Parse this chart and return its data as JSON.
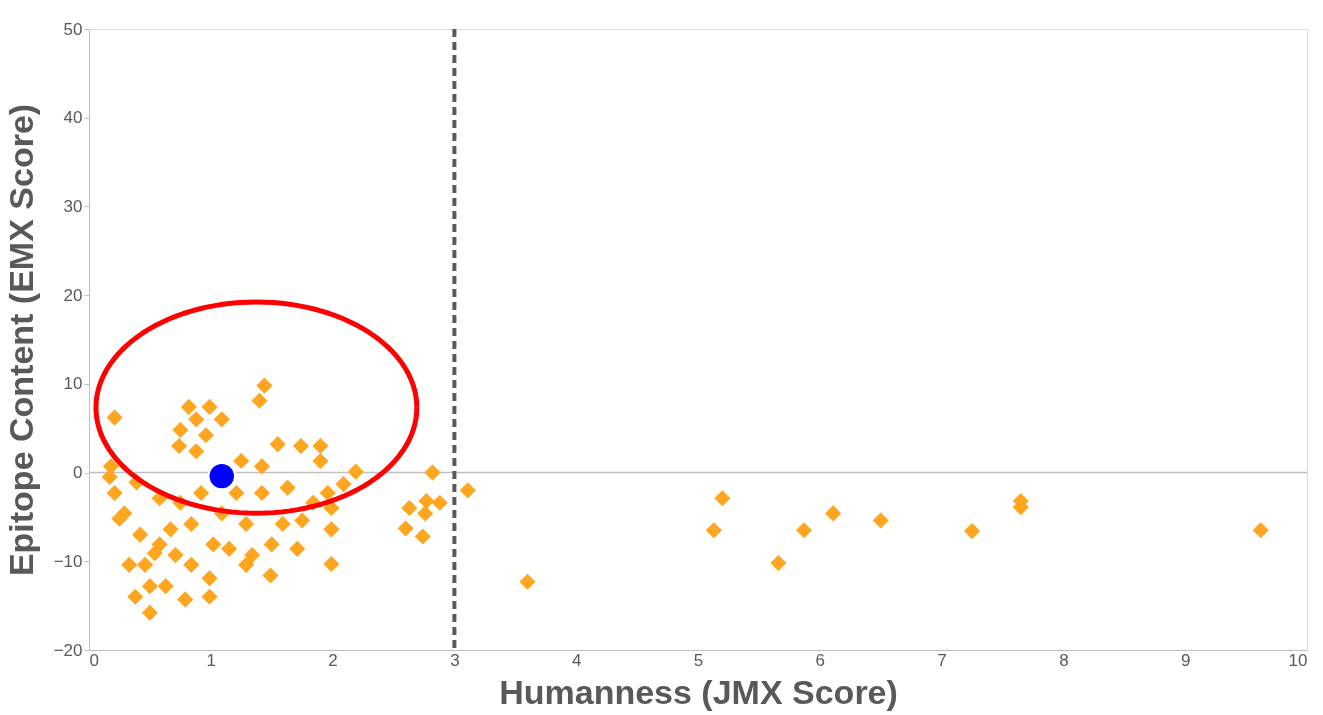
{
  "chart_data": {
    "type": "scatter",
    "xlabel": "Humanness (JMX Score)",
    "ylabel": "Epitope Content (EMX Score)",
    "xlim": [
      0,
      10
    ],
    "xticks": [
      0,
      1,
      2,
      3,
      4,
      5,
      6,
      7,
      8,
      9,
      10
    ],
    "ylim": [
      -20,
      50
    ],
    "yticks": [
      -20,
      -10,
      0,
      10,
      20,
      30,
      40,
      50
    ],
    "grid": false,
    "ref_lines": [
      {
        "axis": "y",
        "value": 0,
        "color": "#bfbfbf",
        "line_style": "solid"
      },
      {
        "axis": "x",
        "value": 3,
        "color": "#595959",
        "line_style": "dashed"
      }
    ],
    "series": [
      {
        "color": "#ffa520",
        "marker": "diamond",
        "x": [
          0.21,
          0.18,
          1.4,
          1.44,
          0.82,
          0.99,
          0.88,
          1.09,
          0.75,
          0.96,
          0.74,
          0.88,
          1.25,
          1.42,
          1.55,
          1.74,
          1.9,
          1.9,
          2.19,
          2.09,
          1.96,
          1.99,
          1.99,
          1.99,
          1.84,
          1.75,
          1.71,
          1.59,
          1.5,
          1.49,
          1.34,
          1.29,
          1.15,
          1.02,
          0.99,
          0.99,
          0.79,
          0.84,
          0.71,
          0.58,
          0.5,
          0.38,
          0.5,
          0.33,
          0.42,
          0.25,
          0.21,
          0.29,
          0.39,
          0.58,
          0.75,
          0.92,
          1.21,
          1.42,
          1.63,
          1.09,
          1.29,
          0.84,
          0.67,
          0.17,
          0.63,
          0.46,
          0.54,
          2.6,
          2.63,
          2.74,
          2.77,
          2.82,
          2.88,
          2.76,
          3.11,
          3.6,
          5.13,
          5.2,
          5.66,
          5.87,
          6.11,
          6.5,
          7.25,
          7.65,
          7.65,
          9.62
        ],
        "values": [
          6.2,
          0.7,
          8.1,
          9.8,
          7.4,
          7.4,
          6.0,
          6.0,
          4.8,
          4.2,
          3.0,
          2.4,
          1.3,
          0.7,
          3.2,
          3.0,
          3.0,
          1.3,
          0.1,
          -1.3,
          -2.3,
          -4.0,
          -6.4,
          -10.3,
          -3.4,
          -5.4,
          -8.6,
          -5.8,
          -8.1,
          -11.6,
          -9.3,
          -10.4,
          -8.6,
          -8.1,
          -11.9,
          -14.0,
          -14.3,
          -10.4,
          -9.3,
          -8.1,
          -15.8,
          -14.0,
          -12.8,
          -10.4,
          -7.0,
          -5.2,
          -2.3,
          -4.6,
          -1.1,
          -2.9,
          -3.4,
          -2.3,
          -2.3,
          -2.3,
          -1.7,
          -4.6,
          -5.8,
          -5.8,
          -6.4,
          -0.5,
          -12.8,
          -10.4,
          -9.1,
          -6.3,
          -4.0,
          -7.2,
          -3.2,
          0.0,
          -3.4,
          -4.6,
          -2.0,
          -12.3,
          -6.5,
          -2.9,
          -10.2,
          -6.5,
          -4.6,
          -5.4,
          -6.6,
          -3.2,
          -3.9,
          -6.5
        ]
      },
      {
        "color": "#0000ff",
        "marker": "circle",
        "x": [
          1.09
        ],
        "values": [
          -0.4
        ]
      }
    ]
  }
}
